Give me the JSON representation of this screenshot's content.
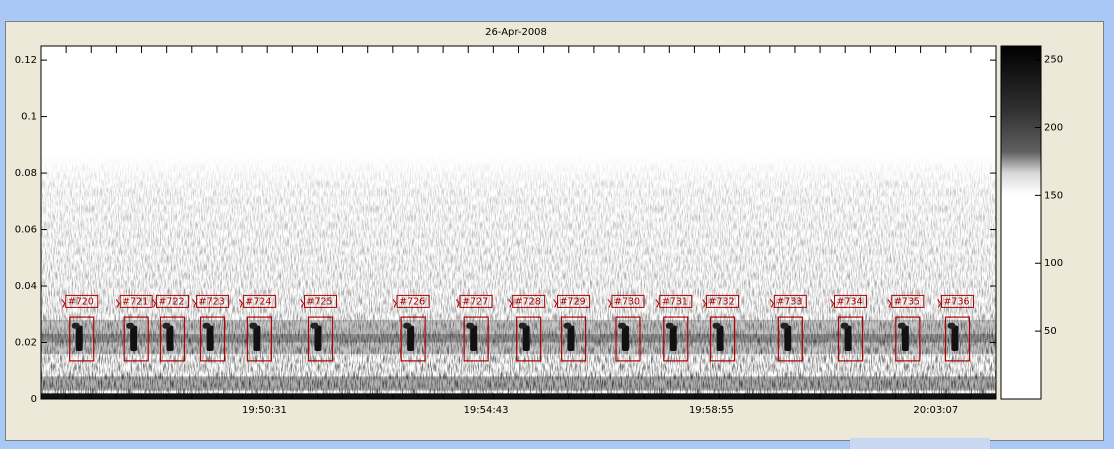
{
  "window": {
    "background": "#ece9d8"
  },
  "chart_data": {
    "type": "heatmap",
    "title": "26-Apr-2008",
    "xlabel": "",
    "ylabel": "",
    "x_tick_labels": [
      "19:50:31",
      "19:54:43",
      "19:58:55",
      "20:03:07"
    ],
    "y_tick_labels": [
      "0",
      "0.02",
      "0.04",
      "0.06",
      "0.08",
      "0.1",
      "0.12"
    ],
    "y_ticks": [
      0,
      0.02,
      0.04,
      0.06,
      0.08,
      0.1,
      0.12
    ],
    "ylim": [
      0,
      0.125
    ],
    "colormap": "gray-reversed",
    "colorbar": {
      "tick_labels": [
        "250",
        "200",
        "150",
        "100",
        "50"
      ],
      "ticks": [
        250,
        200,
        150,
        100,
        50
      ],
      "range": [
        0,
        260
      ]
    },
    "detection_color": "#b00000",
    "detections": [
      {
        "label": "#720"
      },
      {
        "label": "#721"
      },
      {
        "label": "#722"
      },
      {
        "label": "#723"
      },
      {
        "label": "#724"
      },
      {
        "label": "#725"
      },
      {
        "label": "#726"
      },
      {
        "label": "#727"
      },
      {
        "label": "#728"
      },
      {
        "label": "#729"
      },
      {
        "label": "#730"
      },
      {
        "label": "#731"
      },
      {
        "label": "#732"
      },
      {
        "label": "#733"
      },
      {
        "label": "#734"
      },
      {
        "label": "#735"
      },
      {
        "label": "#736"
      }
    ]
  }
}
